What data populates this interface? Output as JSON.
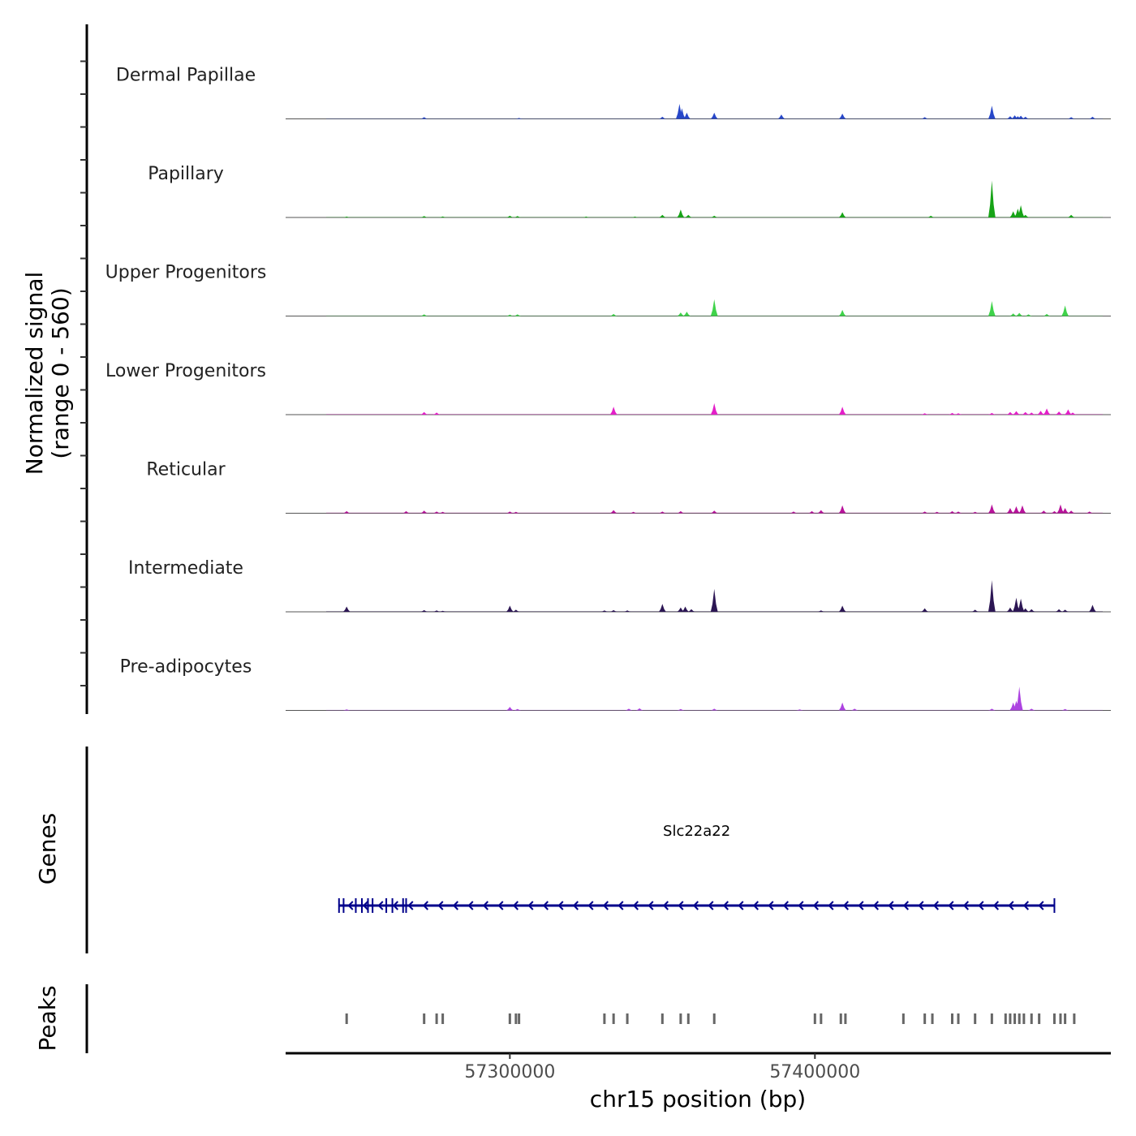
{
  "chart_data": {
    "type": "area",
    "title": "",
    "ylabel_line1": "Normalized signal",
    "ylabel_line2": "(range 0 - 560)",
    "y_range": [
      0,
      560
    ],
    "xlabel": "chr15 position (bp)",
    "chromosome": "chr15",
    "x_range": [
      57226500,
      57497000
    ],
    "x_ticks": [
      {
        "value": 57300000,
        "label": "57300000"
      },
      {
        "value": 57400000,
        "label": "57400000"
      }
    ],
    "tracks": [
      {
        "name": "Dermal Papillae",
        "color": "#2747c9",
        "baseline": 3,
        "peaks": [
          [
            57271900,
            10
          ],
          [
            57303000,
            5
          ],
          [
            57350000,
            12
          ],
          [
            57355600,
            85
          ],
          [
            57356400,
            60
          ],
          [
            57358000,
            35
          ],
          [
            57367000,
            35
          ],
          [
            57389000,
            25
          ],
          [
            57409000,
            30
          ],
          [
            57436000,
            10
          ],
          [
            57458000,
            75
          ],
          [
            57464000,
            15
          ],
          [
            57465500,
            20
          ],
          [
            57466500,
            15
          ],
          [
            57467500,
            18
          ],
          [
            57469000,
            12
          ],
          [
            57484000,
            10
          ],
          [
            57491000,
            12
          ]
        ]
      },
      {
        "name": "Papillary",
        "color": "#17a317",
        "baseline": 3,
        "peaks": [
          [
            57246500,
            5
          ],
          [
            57271900,
            8
          ],
          [
            57278000,
            6
          ],
          [
            57300000,
            10
          ],
          [
            57302500,
            8
          ],
          [
            57325000,
            5
          ],
          [
            57341000,
            5
          ],
          [
            57350000,
            15
          ],
          [
            57356000,
            45
          ],
          [
            57358500,
            15
          ],
          [
            57367000,
            10
          ],
          [
            57409000,
            30
          ],
          [
            57438000,
            10
          ],
          [
            57458000,
            210
          ],
          [
            57465000,
            35
          ],
          [
            57466500,
            50
          ],
          [
            57467500,
            70
          ],
          [
            57469000,
            15
          ],
          [
            57484000,
            15
          ]
        ]
      },
      {
        "name": "Upper Progenitors",
        "color": "#3fd34a",
        "baseline": 3,
        "peaks": [
          [
            57271900,
            10
          ],
          [
            57300000,
            8
          ],
          [
            57302500,
            10
          ],
          [
            57334000,
            12
          ],
          [
            57356000,
            20
          ],
          [
            57358000,
            25
          ],
          [
            57367000,
            95
          ],
          [
            57409000,
            35
          ],
          [
            57458000,
            85
          ],
          [
            57465000,
            15
          ],
          [
            57467000,
            18
          ],
          [
            57470000,
            10
          ],
          [
            57476000,
            12
          ],
          [
            57482000,
            60
          ]
        ]
      },
      {
        "name": "Lower Progenitors",
        "color": "#e31fc8",
        "baseline": 4,
        "peaks": [
          [
            57271900,
            15
          ],
          [
            57276000,
            12
          ],
          [
            57334000,
            45
          ],
          [
            57367000,
            65
          ],
          [
            57409000,
            45
          ],
          [
            57436000,
            8
          ],
          [
            57445000,
            10
          ],
          [
            57447000,
            8
          ],
          [
            57458000,
            10
          ],
          [
            57464000,
            15
          ],
          [
            57466000,
            20
          ],
          [
            57469000,
            15
          ],
          [
            57471000,
            12
          ],
          [
            57474000,
            22
          ],
          [
            57476000,
            35
          ],
          [
            57480000,
            18
          ],
          [
            57483000,
            30
          ],
          [
            57484500,
            12
          ]
        ]
      },
      {
        "name": "Reticular",
        "color": "#b8139b",
        "baseline": 4,
        "peaks": [
          [
            57246500,
            12
          ],
          [
            57266000,
            12
          ],
          [
            57271900,
            15
          ],
          [
            57276000,
            10
          ],
          [
            57278000,
            8
          ],
          [
            57300000,
            10
          ],
          [
            57302000,
            8
          ],
          [
            57334000,
            18
          ],
          [
            57340500,
            8
          ],
          [
            57350000,
            10
          ],
          [
            57356000,
            12
          ],
          [
            57367000,
            15
          ],
          [
            57393000,
            10
          ],
          [
            57399000,
            12
          ],
          [
            57402000,
            18
          ],
          [
            57409000,
            45
          ],
          [
            57436000,
            10
          ],
          [
            57440000,
            8
          ],
          [
            57445000,
            12
          ],
          [
            57447000,
            10
          ],
          [
            57452500,
            8
          ],
          [
            57458000,
            50
          ],
          [
            57464000,
            30
          ],
          [
            57466000,
            40
          ],
          [
            57468000,
            45
          ],
          [
            57475000,
            15
          ],
          [
            57478500,
            12
          ],
          [
            57480500,
            50
          ],
          [
            57482000,
            30
          ],
          [
            57484000,
            15
          ],
          [
            57490000,
            10
          ]
        ]
      },
      {
        "name": "Intermediate",
        "color": "#2c1654",
        "baseline": 4,
        "peaks": [
          [
            57246500,
            30
          ],
          [
            57271900,
            10
          ],
          [
            57276000,
            8
          ],
          [
            57278000,
            6
          ],
          [
            57300000,
            35
          ],
          [
            57302000,
            12
          ],
          [
            57331000,
            8
          ],
          [
            57334000,
            10
          ],
          [
            57338500,
            8
          ],
          [
            57350000,
            45
          ],
          [
            57356000,
            25
          ],
          [
            57357500,
            30
          ],
          [
            57359500,
            15
          ],
          [
            57367000,
            130
          ],
          [
            57402000,
            8
          ],
          [
            57409000,
            35
          ],
          [
            57436000,
            20
          ],
          [
            57452500,
            12
          ],
          [
            57458000,
            180
          ],
          [
            57464000,
            25
          ],
          [
            57466000,
            80
          ],
          [
            57467500,
            75
          ],
          [
            57469000,
            20
          ],
          [
            57471000,
            15
          ],
          [
            57480000,
            15
          ],
          [
            57482000,
            12
          ],
          [
            57491000,
            40
          ]
        ]
      },
      {
        "name": "Pre-adipocytes",
        "color": "#ad43e1",
        "baseline": 3,
        "peaks": [
          [
            57246500,
            6
          ],
          [
            57300000,
            20
          ],
          [
            57302500,
            8
          ],
          [
            57339000,
            10
          ],
          [
            57342500,
            12
          ],
          [
            57356000,
            8
          ],
          [
            57367000,
            10
          ],
          [
            57395000,
            6
          ],
          [
            57409000,
            45
          ],
          [
            57413000,
            10
          ],
          [
            57458000,
            10
          ],
          [
            57465000,
            45
          ],
          [
            57466000,
            55
          ],
          [
            57467000,
            135
          ],
          [
            57471000,
            10
          ],
          [
            57482000,
            8
          ]
        ]
      }
    ],
    "genes": [
      {
        "name": "Slc22a22",
        "strand": "-",
        "start": 57244000,
        "end": 57478500,
        "color": "#00008b",
        "exons": [
          57244000,
          57245500,
          57249500,
          57251500,
          57253500,
          57255000,
          57259500,
          57261500,
          57265000,
          57266000,
          57478500
        ]
      }
    ],
    "genes_track_label": "Genes",
    "peaks_track_label": "Peaks",
    "peak_color": "#666666",
    "peak_regions": [
      57246500,
      57271900,
      57276000,
      57278000,
      57300000,
      57302000,
      57303000,
      57331000,
      57334000,
      57338500,
      57350000,
      57356000,
      57358500,
      57367000,
      57400000,
      57402000,
      57408500,
      57410000,
      57429000,
      57436000,
      57438500,
      57445000,
      57447000,
      57452500,
      57458000,
      57462500,
      57464000,
      57465500,
      57467000,
      57468500,
      57471000,
      57473500,
      57478500,
      57480500,
      57482000,
      57485000
    ]
  }
}
